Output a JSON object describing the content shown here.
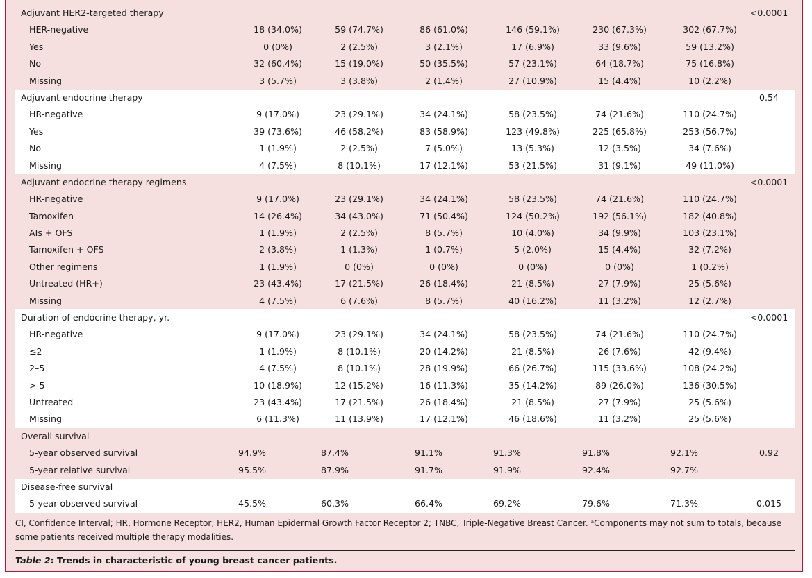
{
  "sections": [
    {
      "title": "Adjuvant HER2-targeted therapy",
      "p": "<0.0001",
      "bg": "pink",
      "rows": [
        {
          "label": "HER-negative",
          "values": [
            "18 (34.0%)",
            "59 (74.7%)",
            "86 (61.0%)",
            "146 (59.1%)",
            "230 (67.3%)",
            "302 (67.7%)"
          ]
        },
        {
          "label": "Yes",
          "values": [
            "0 (0%)",
            "2 (2.5%)",
            "3 (2.1%)",
            "17 (6.9%)",
            "33 (9.6%)",
            "59 (13.2%)"
          ]
        },
        {
          "label": "No",
          "values": [
            "32 (60.4%)",
            "15 (19.0%)",
            "50 (35.5%)",
            "57 (23.1%)",
            "64 (18.7%)",
            "75 (16.8%)"
          ]
        },
        {
          "label": "Missing",
          "values": [
            "3 (5.7%)",
            "3 (3.8%)",
            "2 (1.4%)",
            "27 (10.9%)",
            "15 (4.4%)",
            "10 (2.2%)"
          ]
        }
      ]
    },
    {
      "title": "Adjuvant endocrine therapy",
      "p": "0.54",
      "bg": "white",
      "rows": [
        {
          "label": "HR-negative",
          "values": [
            "9 (17.0%)",
            "23 (29.1%)",
            "34 (24.1%)",
            "58 (23.5%)",
            "74 (21.6%)",
            "110 (24.7%)"
          ]
        },
        {
          "label": "Yes",
          "values": [
            "39 (73.6%)",
            "46 (58.2%)",
            "83 (58.9%)",
            "123 (49.8%)",
            "225 (65.8%)",
            "253 (56.7%)"
          ]
        },
        {
          "label": "No",
          "values": [
            "1 (1.9%)",
            "2 (2.5%)",
            "7 (5.0%)",
            "13 (5.3%)",
            "12 (3.5%)",
            "34 (7.6%)"
          ]
        },
        {
          "label": "Missing",
          "values": [
            "4 (7.5%)",
            "8 (10.1%)",
            "17 (12.1%)",
            "53 (21.5%)",
            "31 (9.1%)",
            "49 (11.0%)"
          ]
        }
      ]
    },
    {
      "title": "Adjuvant endocrine therapy regimens",
      "sup": "a",
      "p": "<0.0001",
      "bg": "pink",
      "rows": [
        {
          "label": "HR-negative",
          "values": [
            "9 (17.0%)",
            "23 (29.1%)",
            "34 (24.1%)",
            "58 (23.5%)",
            "74 (21.6%)",
            "110 (24.7%)"
          ]
        },
        {
          "label": "Tamoxifen",
          "values": [
            "14 (26.4%)",
            "34 (43.0%)",
            "71 (50.4%)",
            "124 (50.2%)",
            "192 (56.1%)",
            "182 (40.8%)"
          ]
        },
        {
          "label": "AIs + OFS",
          "values": [
            "1 (1.9%)",
            "2 (2.5%)",
            "8 (5.7%)",
            "10 (4.0%)",
            "34 (9.9%)",
            "103 (23.1%)"
          ]
        },
        {
          "label": "Tamoxifen + OFS",
          "values": [
            "2 (3.8%)",
            "1 (1.3%)",
            "1 (0.7%)",
            "5 (2.0%)",
            "15 (4.4%)",
            "32 (7.2%)"
          ]
        },
        {
          "label": "Other regimens",
          "values": [
            "1 (1.9%)",
            "0 (0%)",
            "0 (0%)",
            "0 (0%)",
            "0 (0%)",
            "1 (0.2%)"
          ]
        },
        {
          "label": "Untreated (HR+)",
          "values": [
            "23 (43.4%)",
            "17 (21.5%)",
            "26 (18.4%)",
            "21 (8.5%)",
            "27 (7.9%)",
            "25 (5.6%)"
          ]
        },
        {
          "label": "Missing",
          "values": [
            "4 (7.5%)",
            "6 (7.6%)",
            "8 (5.7%)",
            "40 (16.2%)",
            "11 (3.2%)",
            "12 (2.7%)"
          ]
        }
      ]
    },
    {
      "title": "Duration of endocrine therapy, yr.",
      "p": "<0.0001",
      "bg": "white",
      "rows": [
        {
          "label": "HR-negative",
          "values": [
            "9 (17.0%)",
            "23 (29.1%)",
            "34 (24.1%)",
            "58 (23.5%)",
            "74 (21.6%)",
            "110 (24.7%)"
          ]
        },
        {
          "label": "≤2",
          "values": [
            "1 (1.9%)",
            "8 (10.1%)",
            "20 (14.2%)",
            "21 (8.5%)",
            "26 (7.6%)",
            "42 (9.4%)"
          ]
        },
        {
          "label": "2–5",
          "values": [
            "4 (7.5%)",
            "8 (10.1%)",
            "28 (19.9%)",
            "66 (26.7%)",
            "115 (33.6%)",
            "108 (24.2%)"
          ]
        },
        {
          "label": "> 5",
          "values": [
            "10 (18.9%)",
            "12 (15.2%)",
            "16 (11.3%)",
            "35 (14.2%)",
            "89 (26.0%)",
            "136 (30.5%)"
          ]
        },
        {
          "label": "Untreated",
          "values": [
            "23 (43.4%)",
            "17 (21.5%)",
            "26 (18.4%)",
            "21 (8.5%)",
            "27 (7.9%)",
            "25 (5.6%)"
          ]
        },
        {
          "label": "Missing",
          "values": [
            "6 (11.3%)",
            "11 (13.9%)",
            "17 (12.1%)",
            "46 (18.6%)",
            "11 (3.2%)",
            "25 (5.6%)"
          ]
        }
      ]
    },
    {
      "title": "Overall survival",
      "p": "",
      "bg": "pink",
      "pct": true,
      "rows": [
        {
          "label": "5-year observed survival",
          "values": [
            "94.9%",
            "87.4%",
            "91.1%",
            "91.3%",
            "91.8%",
            "92.1%"
          ],
          "p": "0.92"
        },
        {
          "label": "5-year relative survival",
          "values": [
            "95.5%",
            "87.9%",
            "91.7%",
            "91.9%",
            "92.4%",
            "92.7%"
          ]
        }
      ]
    },
    {
      "title": "Disease-free survival",
      "p": "",
      "bg": "white",
      "pct": true,
      "rows": [
        {
          "label": "5-year observed survival",
          "values": [
            "45.5%",
            "60.3%",
            "66.4%",
            "69.2%",
            "79.6%",
            "71.3%"
          ],
          "p": "0.015"
        }
      ]
    }
  ],
  "notes": "CI, Confidence Interval; HR, Hormone Receptor; HER2, Human Epidermal Growth Factor Receptor 2; TNBC, Triple-Negative Breast Cancer. ᵃComponents may not sum to totals, because some patients received multiple therapy modalities.",
  "caption": {
    "label": "Table 2",
    "text": ": Trends in characteristic of young breast cancer patients."
  },
  "colors": {
    "band": "#f6dfdf",
    "border": "#b3173f"
  }
}
